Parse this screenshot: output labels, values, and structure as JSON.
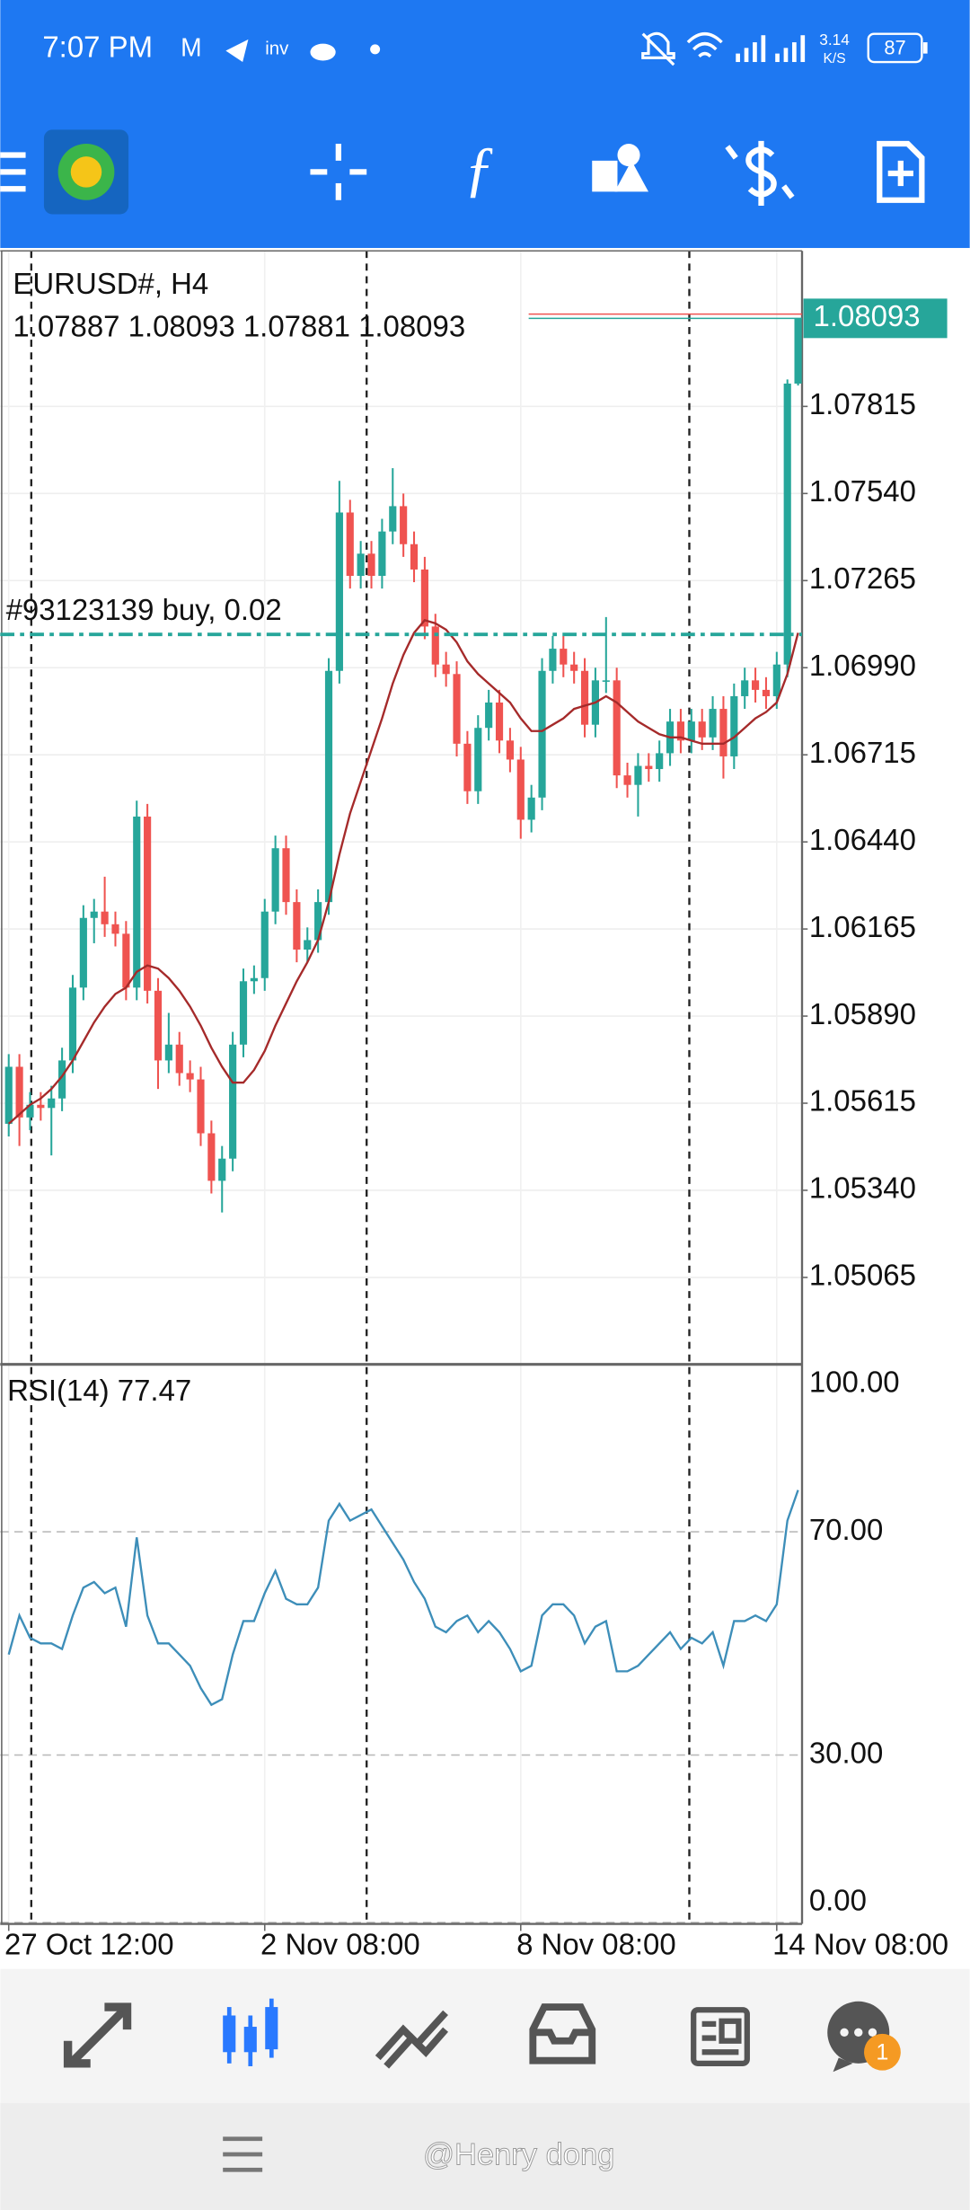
{
  "status_bar": {
    "time": "7:07 PM",
    "speed": "3.14",
    "speed_unit": "K/S",
    "battery": "87"
  },
  "chart_data": {
    "type": "candlestick",
    "symbol": "EURUSD#, H4",
    "categories": [
      "27 Oct 12:00",
      null,
      null,
      null,
      null,
      null,
      null,
      null,
      null,
      null,
      null,
      null,
      null,
      null,
      null,
      null,
      null,
      null,
      null,
      null,
      null,
      null,
      null,
      null,
      "2 Nov 08:00",
      null,
      null,
      null,
      null,
      null,
      null,
      null,
      null,
      null,
      null,
      null,
      null,
      null,
      null,
      null,
      null,
      null,
      null,
      null,
      null,
      null,
      null,
      null,
      "8 Nov 08:00",
      null,
      null,
      null,
      null,
      null,
      null,
      null,
      null,
      null,
      null,
      null,
      null,
      null,
      null,
      null,
      null,
      null,
      null,
      null,
      null,
      null,
      null,
      null,
      "14 Nov 08:00",
      null,
      null
    ],
    "open": [
      1.0555,
      1.0573,
      1.0557,
      1.0561,
      1.056,
      1.0563,
      1.0575,
      1.0598,
      1.062,
      1.0622,
      1.0618,
      1.0615,
      1.0598,
      1.0652,
      1.0597,
      1.0575,
      1.058,
      1.0571,
      1.0569,
      1.0552,
      1.0537,
      1.0544,
      1.058,
      1.06,
      1.0601,
      1.0622,
      1.0642,
      1.0625,
      1.061,
      1.0613,
      1.0625,
      1.0698,
      1.0748,
      1.0728,
      1.0735,
      1.0728,
      1.0742,
      1.075,
      1.0738,
      1.073,
      1.0712,
      1.07,
      1.0697,
      1.0675,
      1.066,
      1.068,
      1.0688,
      1.0676,
      1.067,
      1.0651,
      1.0658,
      1.0698,
      1.0705,
      1.07,
      1.0698,
      1.0681,
      1.0695,
      1.0695,
      1.0665,
      1.0662,
      1.0668,
      1.0667,
      1.0672,
      1.0682,
      1.0676,
      1.0682,
      1.0677,
      1.0686,
      1.0671,
      1.069,
      1.0695,
      1.0692,
      1.069,
      1.07,
      1.07887
    ],
    "high": [
      1.0577,
      1.0577,
      1.0565,
      1.0565,
      1.0567,
      1.0579,
      1.0602,
      1.0624,
      1.0626,
      1.0633,
      1.0622,
      1.0619,
      1.0657,
      1.0656,
      1.0601,
      1.059,
      1.0584,
      1.0575,
      1.0573,
      1.0556,
      1.0548,
      1.0584,
      1.0604,
      1.0605,
      1.0626,
      1.0646,
      1.0646,
      1.0629,
      1.0617,
      1.0629,
      1.0702,
      1.0758,
      1.0752,
      1.0739,
      1.0739,
      1.0746,
      1.0762,
      1.0754,
      1.0742,
      1.0734,
      1.0716,
      1.0704,
      1.0701,
      1.0679,
      1.0684,
      1.0692,
      1.0692,
      1.068,
      1.0674,
      1.0662,
      1.0702,
      1.0709,
      1.0709,
      1.0704,
      1.0702,
      1.0699,
      1.0715,
      1.0699,
      1.0669,
      1.0672,
      1.0672,
      1.0676,
      1.0686,
      1.0686,
      1.0686,
      1.0686,
      1.069,
      1.069,
      1.0694,
      1.0699,
      1.0699,
      1.0696,
      1.0704,
      1.079,
      1.08093
    ],
    "low": [
      1.0551,
      1.0548,
      1.0553,
      1.0556,
      1.0545,
      1.0559,
      1.0571,
      1.0594,
      1.0612,
      1.0614,
      1.0611,
      1.0594,
      1.0594,
      1.0593,
      1.0566,
      1.0571,
      1.0567,
      1.0565,
      1.0548,
      1.0533,
      1.0527,
      1.054,
      1.0576,
      1.0596,
      1.0597,
      1.0618,
      1.0621,
      1.0606,
      1.0606,
      1.0609,
      1.0621,
      1.0694,
      1.0724,
      1.0724,
      1.0724,
      1.0724,
      1.0738,
      1.0734,
      1.0726,
      1.0708,
      1.0696,
      1.0693,
      1.0671,
      1.0656,
      1.0656,
      1.0676,
      1.0672,
      1.0666,
      1.0645,
      1.0647,
      1.0654,
      1.0694,
      1.0696,
      1.0694,
      1.0677,
      1.0677,
      1.0691,
      1.0661,
      1.0658,
      1.0652,
      1.0663,
      1.0663,
      1.0668,
      1.0672,
      1.0672,
      1.0673,
      1.0673,
      1.0664,
      1.0667,
      1.0686,
      1.0688,
      1.0686,
      1.0686,
      1.0696,
      1.07881
    ],
    "close": [
      1.0573,
      1.0557,
      1.0561,
      1.056,
      1.0563,
      1.0575,
      1.0598,
      1.062,
      1.0622,
      1.0618,
      1.0615,
      1.0598,
      1.0652,
      1.0597,
      1.0575,
      1.058,
      1.0571,
      1.0569,
      1.0552,
      1.0537,
      1.0544,
      1.058,
      1.06,
      1.0601,
      1.0622,
      1.0642,
      1.0625,
      1.061,
      1.0613,
      1.0625,
      1.0698,
      1.0748,
      1.0728,
      1.0735,
      1.0728,
      1.0742,
      1.075,
      1.0738,
      1.073,
      1.0712,
      1.07,
      1.0697,
      1.0675,
      1.066,
      1.068,
      1.0688,
      1.0676,
      1.067,
      1.0651,
      1.0658,
      1.0698,
      1.0705,
      1.07,
      1.0698,
      1.0681,
      1.0695,
      1.0695,
      1.0665,
      1.0662,
      1.0668,
      1.0667,
      1.0672,
      1.0682,
      1.0676,
      1.0682,
      1.0677,
      1.0686,
      1.0671,
      1.069,
      1.0695,
      1.0692,
      1.069,
      1.07,
      1.07887,
      1.08093
    ],
    "up_color": "#26a69a",
    "down_color": "#ef5350",
    "ma": {
      "color": "#a52a2a",
      "values": [
        1.0555,
        1.0558,
        1.0561,
        1.0563,
        1.0566,
        1.057,
        1.0575,
        1.0581,
        1.0587,
        1.0592,
        1.0596,
        1.0598,
        1.0603,
        1.0605,
        1.0604,
        1.0601,
        1.0597,
        1.0592,
        1.0586,
        1.0579,
        1.0573,
        1.0568,
        1.0568,
        1.0572,
        1.0578,
        1.0586,
        1.0593,
        1.06,
        1.0606,
        1.0613,
        1.0625,
        1.064,
        1.0653,
        1.0663,
        1.0673,
        1.0683,
        1.0694,
        1.0703,
        1.071,
        1.0714,
        1.0713,
        1.0711,
        1.0707,
        1.0701,
        1.0697,
        1.0694,
        1.0691,
        1.0688,
        1.0683,
        1.0679,
        1.0679,
        1.0681,
        1.0683,
        1.0686,
        1.0687,
        1.0688,
        1.069,
        1.0688,
        1.0685,
        1.0682,
        1.068,
        1.0678,
        1.0677,
        1.0677,
        1.0676,
        1.0675,
        1.0675,
        1.0675,
        1.0677,
        1.068,
        1.0683,
        1.0685,
        1.0688,
        1.0697,
        1.071
      ]
    },
    "ylim": [
      1.04795,
      1.08306
    ],
    "yticks": [
      1.07815,
      {
        "value": 1.0754,
        "label": "1.07540"
      },
      1.07265,
      {
        "value": 1.0699,
        "label": "1.06990"
      },
      1.06715,
      {
        "value": 1.0644,
        "label": "1.06440"
      },
      1.06165,
      {
        "value": 1.0589,
        "label": "1.05890"
      },
      1.05615,
      {
        "value": 1.0534,
        "label": "1.05340"
      },
      1.05065
    ],
    "grid": true,
    "order": {
      "label": "#93123139 buy, 0.02",
      "price": 1.07095,
      "color": "#26a69a"
    },
    "rsi": {
      "label": "RSI(14) 77.47",
      "color": "#3d8eb9",
      "ylim": [
        0,
        100
      ],
      "yticks": [
        {
          "value": 100,
          "label": "100.00"
        },
        {
          "value": 70,
          "label": "70.00"
        },
        {
          "value": 30,
          "label": "30.00"
        },
        {
          "value": 0,
          "label": "0.00"
        }
      ],
      "values": [
        48,
        55,
        51,
        50,
        50,
        49,
        55,
        60,
        61,
        59,
        60,
        53,
        69,
        55,
        50,
        50,
        48,
        46,
        42,
        39,
        40,
        48,
        54,
        54,
        59,
        63,
        58,
        57,
        57,
        60,
        72,
        75,
        72,
        73,
        74,
        71,
        68,
        65,
        61,
        58,
        53,
        52,
        54,
        55,
        52,
        54,
        52,
        49,
        45,
        46,
        55,
        57,
        57,
        55,
        50,
        53,
        54,
        45,
        45,
        46,
        48,
        50,
        52,
        49,
        51,
        50,
        52,
        46,
        54,
        54,
        55,
        54,
        57,
        72,
        77.47
      ]
    }
  },
  "nav": {
    "badge": "1"
  },
  "watermark": "@Henry dong"
}
